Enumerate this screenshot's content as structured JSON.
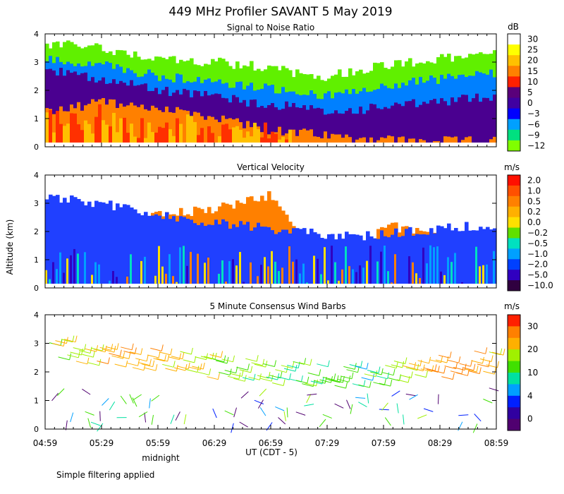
{
  "figure_title": "449 MHz Profiler SAVANT  5 May 2019",
  "y_axis_label": "Altitude (km)",
  "x_axis_label": "UT  (CDT - 5)",
  "midnight_label": "midnight",
  "footnote": "Simple filtering applied",
  "chart_data": [
    {
      "type": "heatmap",
      "title": "Signal to Noise Ratio",
      "units": "dB",
      "x_ticks": [
        "04:59",
        "05:29",
        "05:59",
        "06:29",
        "06:59",
        "07:29",
        "07:59",
        "08:29",
        "08:59"
      ],
      "y_ticks": [
        "0",
        "1",
        "2",
        "3",
        "4"
      ],
      "ylim": [
        0,
        4
      ],
      "colorbar_labels": [
        "30",
        "25",
        "20",
        "15",
        "10",
        "5",
        "0",
        "−3",
        "−6",
        "−9",
        "−12"
      ],
      "colorbar_colors": [
        "#ffffff",
        "#ffff00",
        "#ffc000",
        "#ff8000",
        "#ff2000",
        "#5a007a",
        "#4000a0",
        "#0000ff",
        "#00a0ff",
        "#00e080",
        "#80ff00"
      ],
      "layers": [
        {
          "value_db": 20,
          "color": "#ff8000",
          "top_km": [
            1.2,
            1.4,
            1.6,
            1.5,
            1.3,
            1.2,
            1.0,
            0.8,
            0.6,
            0.5,
            0.4,
            0.3,
            0.3,
            0.2,
            0.2,
            0.2,
            0.2
          ]
        },
        {
          "value_db": 5,
          "color": "#4a0090",
          "top_km": [
            2.7,
            2.6,
            2.4,
            2.2,
            2.0,
            1.9,
            1.8,
            1.6,
            1.5,
            1.4,
            1.2,
            1.3,
            1.4,
            1.5,
            1.6,
            1.7,
            1.8
          ]
        },
        {
          "value_db": -6,
          "color": "#0080ff",
          "top_km": [
            3.1,
            3.0,
            2.9,
            2.7,
            2.5,
            2.4,
            2.3,
            2.2,
            2.1,
            1.9,
            1.8,
            1.9,
            2.1,
            2.3,
            2.4,
            2.5,
            2.6
          ]
        },
        {
          "value_db": -12,
          "color": "#60f000",
          "top_km": [
            3.6,
            3.6,
            3.5,
            3.3,
            3.1,
            3.0,
            3.0,
            2.9,
            2.8,
            2.6,
            2.5,
            2.7,
            2.9,
            3.0,
            3.1,
            3.2,
            3.3
          ]
        }
      ]
    },
    {
      "type": "heatmap",
      "title": "Vertical Velocity",
      "units": "m/s",
      "x_ticks": [
        "04:59",
        "05:29",
        "05:59",
        "06:29",
        "06:59",
        "07:29",
        "07:59",
        "08:29",
        "08:59"
      ],
      "y_ticks": [
        "0",
        "1",
        "2",
        "3",
        "4"
      ],
      "ylim": [
        0,
        4
      ],
      "colorbar_labels": [
        "2.0",
        "1.0",
        "0.5",
        "0.2",
        "0.0",
        "−0.2",
        "−0.5",
        "−1.0",
        "−2.0",
        "−5.0",
        "−10.0"
      ],
      "colorbar_colors": [
        "#ff1000",
        "#ff5000",
        "#ff8000",
        "#ffb000",
        "#ffe000",
        "#60e000",
        "#00e0c0",
        "#00a0ff",
        "#0040ff",
        "#3000c0",
        "#300040"
      ],
      "layers": [
        {
          "value_ms": -1.0,
          "color": "#2040ff",
          "top_km": [
            3.2,
            3.1,
            3.0,
            2.8,
            2.6,
            2.4,
            2.3,
            2.2,
            2.1,
            2.0,
            1.9,
            1.8,
            1.9,
            2.0,
            2.1,
            2.2,
            2.2
          ]
        },
        {
          "value_ms": 0.5,
          "color": "#ff8000",
          "top_km": [
            0,
            0,
            0,
            2.2,
            2.6,
            2.7,
            2.8,
            3.0,
            3.3,
            2.0,
            0,
            0,
            2.3,
            2.0,
            1.9,
            0,
            0
          ]
        },
        {
          "value_ms": 0.0,
          "color": "#60e000",
          "top_km": [
            1.6,
            1.5,
            1.4,
            1.4,
            1.3,
            1.2,
            1.2,
            1.1,
            1.0,
            1.0,
            1.0,
            1.1,
            1.2,
            1.2,
            1.1,
            1.0,
            1.0
          ]
        }
      ]
    },
    {
      "type": "wind_barbs",
      "title": "5 Minute Consensus Wind Barbs",
      "units": "m/s",
      "x_ticks": [
        "04:59",
        "05:29",
        "05:59",
        "06:29",
        "06:59",
        "07:29",
        "07:59",
        "08:29",
        "08:59"
      ],
      "y_ticks": [
        "0",
        "1",
        "2",
        "3",
        "4"
      ],
      "ylim": [
        0,
        4
      ],
      "colorbar_labels": [
        "30",
        "20",
        "10",
        "4",
        "0"
      ],
      "colorbar_colors": [
        "#ff2000",
        "#ff8000",
        "#ffb000",
        "#a0f000",
        "#40e000",
        "#00e0a0",
        "#00a0ff",
        "#0020ff",
        "#3000a0",
        "#500070"
      ],
      "band_height_km": [
        2.8,
        2.7,
        2.6,
        2.5,
        2.4,
        2.3,
        2.2,
        2.1,
        2.0,
        2.0,
        1.9,
        1.9,
        2.0,
        2.1,
        2.2,
        2.3,
        2.4
      ],
      "band_speed_ms": [
        12,
        14,
        16,
        18,
        16,
        14,
        12,
        10,
        10,
        9,
        8,
        8,
        10,
        14,
        18,
        20,
        16
      ]
    }
  ]
}
